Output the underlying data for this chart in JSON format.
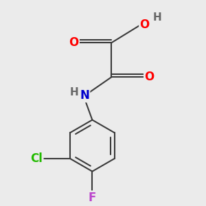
{
  "bg_color": "#ebebeb",
  "bond_color": "#3a3a3a",
  "bond_width": 1.5,
  "atom_colors": {
    "O": "#ff0000",
    "N": "#0000cc",
    "Cl": "#22bb00",
    "F": "#bb44cc",
    "H": "#666666",
    "C": "#3a3a3a"
  },
  "font_size": 12,
  "figsize": [
    3.0,
    3.0
  ],
  "dpi": 100
}
